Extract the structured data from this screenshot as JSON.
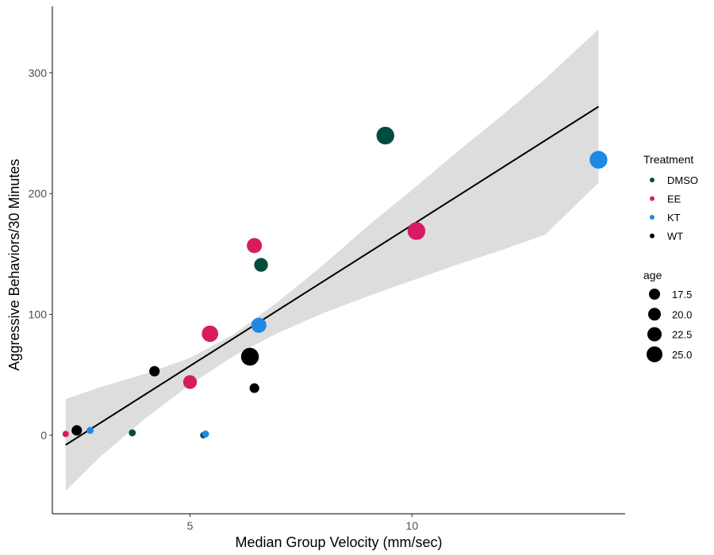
{
  "chart_data": {
    "type": "scatter",
    "title": "",
    "xlabel": "Median Group Velocity (mm/sec)",
    "ylabel": "Aggressive Behaviors/30 Minutes",
    "xlim": [
      1.9,
      14.8
    ],
    "ylim": [
      -65,
      355
    ],
    "x_ticks": [
      5,
      10
    ],
    "y_ticks": [
      0,
      100,
      200,
      300
    ],
    "grid": false,
    "legend_position": "right",
    "colors": {
      "DMSO": "#004d40",
      "EE": "#d81b60",
      "KT": "#1e88e5",
      "WT": "#000000",
      "ribbon": "#dddddd",
      "line": "#000000"
    },
    "series": [
      {
        "name": "DMSO",
        "points": [
          {
            "x": 9.4,
            "y": 248,
            "age": 25
          },
          {
            "x": 6.6,
            "y": 141,
            "age": 22
          },
          {
            "x": 3.7,
            "y": 2,
            "age": 17
          },
          {
            "x": 5.3,
            "y": 0,
            "age": 16.5
          }
        ]
      },
      {
        "name": "EE",
        "points": [
          {
            "x": 10.1,
            "y": 169,
            "age": 25
          },
          {
            "x": 6.45,
            "y": 157,
            "age": 23
          },
          {
            "x": 5.45,
            "y": 84,
            "age": 24
          },
          {
            "x": 5.0,
            "y": 44,
            "age": 22
          },
          {
            "x": 2.2,
            "y": 1,
            "age": 16.5
          }
        ]
      },
      {
        "name": "KT",
        "points": [
          {
            "x": 14.2,
            "y": 228,
            "age": 25
          },
          {
            "x": 6.55,
            "y": 91,
            "age": 23
          },
          {
            "x": 2.75,
            "y": 4,
            "age": 17
          },
          {
            "x": 5.35,
            "y": 1,
            "age": 17
          }
        ]
      },
      {
        "name": "WT",
        "points": [
          {
            "x": 6.35,
            "y": 65,
            "age": 25
          },
          {
            "x": 6.45,
            "y": 39,
            "age": 19
          },
          {
            "x": 4.2,
            "y": 53,
            "age": 19.5
          },
          {
            "x": 2.45,
            "y": 4,
            "age": 19.5
          }
        ]
      }
    ],
    "trend_line": {
      "x": [
        2.2,
        14.2
      ],
      "y": [
        -8,
        272
      ]
    },
    "confidence_band": {
      "x": [
        2.2,
        3,
        4,
        5,
        6,
        7,
        8,
        9,
        10,
        11,
        12,
        13,
        14.2
      ],
      "lower": [
        -46,
        -17,
        14,
        42,
        66,
        85,
        101,
        115,
        128,
        141,
        153,
        166,
        209
      ],
      "upper": [
        30,
        40,
        51,
        64,
        84,
        111,
        141,
        173,
        203,
        234,
        264,
        295,
        336
      ]
    },
    "legend": {
      "color_title": "Treatment",
      "color_entries": [
        "DMSO",
        "EE",
        "KT",
        "WT"
      ],
      "size_title": "age",
      "size_entries": [
        "17.5",
        "20.0",
        "22.5",
        "25.0"
      ]
    }
  }
}
